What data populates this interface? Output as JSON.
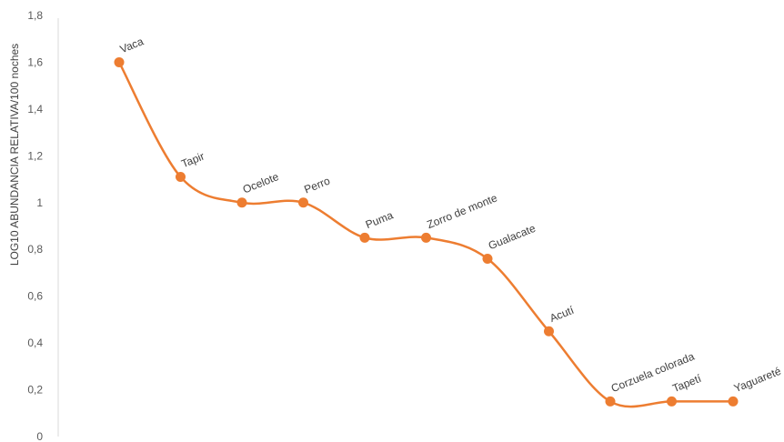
{
  "chart_data": {
    "type": "line",
    "title": "",
    "xlabel": "",
    "ylabel": "LOG10 ABUNDANCIA RELATIVA/100 noches",
    "ylim": [
      0,
      1.8
    ],
    "y_ticks": [
      "0",
      "0,2",
      "0,4",
      "0,6",
      "0,8",
      "1",
      "1,2",
      "1,4",
      "1,6",
      "1,8"
    ],
    "grid": false,
    "legend": "none",
    "line_style": "smooth",
    "categories": [
      "Vaca",
      "Tapir",
      "Ocelote",
      "Perro",
      "Puma",
      "Zorro de monte",
      "Gualacate",
      "Acutí",
      "Corzuela colorada",
      "Tapetí",
      "Yaguareté"
    ],
    "series": [
      {
        "values": [
          1.6,
          1.11,
          1.0,
          1.0,
          0.85,
          0.85,
          0.76,
          0.45,
          0.15,
          0.15,
          0.15
        ],
        "color": "#ED7D31"
      }
    ]
  }
}
